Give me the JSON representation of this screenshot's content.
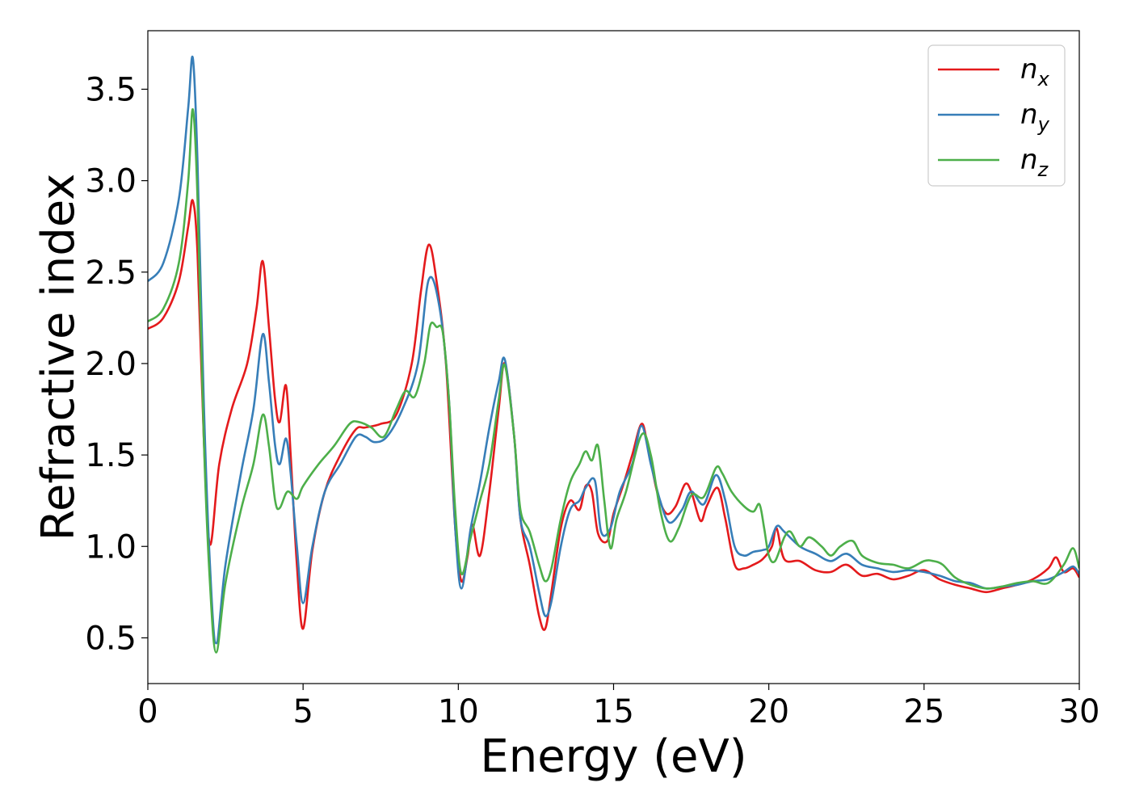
{
  "chart_data": {
    "type": "line",
    "title": "",
    "xlabel": "Energy (eV)",
    "ylabel": "Refractive index",
    "xlim": [
      0,
      30
    ],
    "ylim": [
      0.25,
      3.82
    ],
    "xticks": [
      0,
      5,
      10,
      15,
      20,
      25,
      30
    ],
    "yticks": [
      0.5,
      1.0,
      1.5,
      2.0,
      2.5,
      3.0,
      3.5
    ],
    "grid": false,
    "legend_position": "top-right",
    "series": [
      {
        "name": "n_x",
        "label_base": "n",
        "label_sub": "x",
        "color": "#e41a1c",
        "x": [
          0,
          0.5,
          1.0,
          1.3,
          1.45,
          1.6,
          1.8,
          2.0,
          2.3,
          2.7,
          3.2,
          3.5,
          3.7,
          3.9,
          4.1,
          4.25,
          4.45,
          4.6,
          4.8,
          5.0,
          5.3,
          5.7,
          6.2,
          6.7,
          7.0,
          7.5,
          8.0,
          8.5,
          8.8,
          9.05,
          9.3,
          9.6,
          9.9,
          10.1,
          10.3,
          10.45,
          10.7,
          11.0,
          11.3,
          11.5,
          11.8,
          12.0,
          12.3,
          12.6,
          12.8,
          13.0,
          13.3,
          13.6,
          13.9,
          14.1,
          14.3,
          14.5,
          14.8,
          15.0,
          15.3,
          15.6,
          15.9,
          16.1,
          16.4,
          16.7,
          17.0,
          17.3,
          17.5,
          17.8,
          18.0,
          18.35,
          18.6,
          18.9,
          19.2,
          19.5,
          19.8,
          20.1,
          20.25,
          20.5,
          21.0,
          21.5,
          22.0,
          22.5,
          23.0,
          23.5,
          24.0,
          24.5,
          25.0,
          25.5,
          26.0,
          26.5,
          27.0,
          27.5,
          28.0,
          28.5,
          29.0,
          29.25,
          29.5,
          29.8,
          30.0
        ],
        "y": [
          2.19,
          2.25,
          2.45,
          2.75,
          2.89,
          2.6,
          1.6,
          1.01,
          1.45,
          1.75,
          2.0,
          2.3,
          2.56,
          2.2,
          1.8,
          1.68,
          1.88,
          1.5,
          0.9,
          0.55,
          0.98,
          1.3,
          1.5,
          1.64,
          1.65,
          1.67,
          1.72,
          2.0,
          2.4,
          2.65,
          2.45,
          2.0,
          1.1,
          0.81,
          0.95,
          1.12,
          0.95,
          1.3,
          1.75,
          2.0,
          1.6,
          1.15,
          0.9,
          0.62,
          0.55,
          0.75,
          1.1,
          1.25,
          1.2,
          1.33,
          1.3,
          1.07,
          1.03,
          1.18,
          1.33,
          1.5,
          1.67,
          1.55,
          1.3,
          1.18,
          1.22,
          1.34,
          1.3,
          1.14,
          1.22,
          1.32,
          1.15,
          0.9,
          0.88,
          0.9,
          0.93,
          1.0,
          1.1,
          0.93,
          0.92,
          0.87,
          0.86,
          0.9,
          0.84,
          0.85,
          0.82,
          0.84,
          0.87,
          0.82,
          0.79,
          0.77,
          0.75,
          0.77,
          0.79,
          0.82,
          0.88,
          0.94,
          0.86,
          0.88,
          0.83
        ]
      },
      {
        "name": "n_y",
        "label_base": "n",
        "label_sub": "y",
        "color": "#377eb8",
        "x": [
          0,
          0.5,
          1.0,
          1.3,
          1.45,
          1.6,
          1.8,
          2.0,
          2.2,
          2.5,
          3.0,
          3.4,
          3.7,
          3.9,
          4.1,
          4.25,
          4.45,
          4.6,
          4.8,
          5.0,
          5.3,
          5.7,
          6.2,
          6.7,
          7.0,
          7.3,
          7.7,
          8.2,
          8.7,
          9.05,
          9.4,
          9.7,
          9.9,
          10.1,
          10.4,
          10.7,
          11.0,
          11.3,
          11.5,
          11.8,
          12.0,
          12.3,
          12.6,
          12.8,
          13.0,
          13.3,
          13.6,
          13.9,
          14.1,
          14.4,
          14.6,
          14.9,
          15.2,
          15.6,
          15.9,
          16.2,
          16.5,
          16.8,
          17.2,
          17.5,
          17.9,
          18.3,
          18.6,
          18.9,
          19.2,
          19.5,
          19.8,
          20.0,
          20.25,
          20.5,
          21.0,
          21.5,
          22.0,
          22.5,
          23.0,
          23.5,
          24.0,
          24.5,
          25.0,
          25.5,
          26.0,
          26.5,
          27.0,
          27.5,
          28.0,
          28.5,
          29.0,
          29.5,
          29.8,
          30.0
        ],
        "y": [
          2.45,
          2.55,
          2.9,
          3.4,
          3.67,
          3.1,
          1.8,
          0.9,
          0.47,
          0.9,
          1.4,
          1.75,
          2.16,
          1.9,
          1.55,
          1.45,
          1.59,
          1.4,
          1.0,
          0.69,
          1.0,
          1.3,
          1.45,
          1.6,
          1.6,
          1.57,
          1.6,
          1.75,
          2.0,
          2.46,
          2.3,
          1.8,
          1.1,
          0.77,
          1.1,
          1.35,
          1.65,
          1.9,
          2.02,
          1.6,
          1.15,
          1.0,
          0.75,
          0.62,
          0.7,
          1.0,
          1.2,
          1.25,
          1.32,
          1.36,
          1.08,
          1.1,
          1.3,
          1.45,
          1.66,
          1.45,
          1.25,
          1.13,
          1.2,
          1.3,
          1.23,
          1.39,
          1.25,
          1.0,
          0.95,
          0.97,
          0.98,
          1.0,
          1.11,
          1.08,
          1.0,
          0.96,
          0.92,
          0.96,
          0.9,
          0.88,
          0.86,
          0.87,
          0.86,
          0.84,
          0.81,
          0.8,
          0.77,
          0.78,
          0.79,
          0.81,
          0.82,
          0.86,
          0.89,
          0.85
        ]
      },
      {
        "name": "n_z",
        "label_base": "n",
        "label_sub": "z",
        "color": "#4daf4a",
        "x": [
          0,
          0.5,
          1.0,
          1.3,
          1.45,
          1.6,
          1.8,
          2.0,
          2.2,
          2.5,
          3.0,
          3.4,
          3.7,
          3.9,
          4.1,
          4.25,
          4.5,
          4.8,
          5.0,
          5.5,
          6.0,
          6.5,
          6.8,
          7.2,
          7.6,
          8.0,
          8.3,
          8.6,
          8.9,
          9.1,
          9.3,
          9.5,
          9.7,
          9.9,
          10.1,
          10.4,
          10.7,
          11.0,
          11.3,
          11.5,
          11.8,
          12.0,
          12.3,
          12.6,
          12.8,
          13.0,
          13.3,
          13.6,
          13.9,
          14.1,
          14.3,
          14.5,
          14.7,
          14.9,
          15.1,
          15.4,
          15.9,
          16.2,
          16.5,
          16.8,
          17.1,
          17.5,
          17.9,
          18.3,
          18.5,
          18.8,
          19.2,
          19.5,
          19.7,
          19.85,
          20.0,
          20.2,
          20.5,
          20.7,
          21.0,
          21.3,
          21.7,
          22.0,
          22.3,
          22.7,
          23.0,
          23.5,
          24.0,
          24.5,
          25.0,
          25.3,
          25.6,
          26.0,
          26.5,
          27.0,
          27.5,
          28.0,
          28.5,
          29.0,
          29.5,
          29.8,
          30.0
        ],
        "y": [
          2.23,
          2.3,
          2.55,
          3.0,
          3.39,
          2.9,
          1.6,
          0.8,
          0.42,
          0.8,
          1.2,
          1.45,
          1.72,
          1.55,
          1.25,
          1.21,
          1.3,
          1.26,
          1.33,
          1.45,
          1.55,
          1.67,
          1.68,
          1.65,
          1.6,
          1.75,
          1.85,
          1.82,
          2.0,
          2.21,
          2.2,
          2.17,
          1.8,
          1.2,
          0.85,
          1.05,
          1.25,
          1.45,
          1.8,
          1.99,
          1.6,
          1.2,
          1.08,
          0.9,
          0.81,
          0.88,
          1.15,
          1.35,
          1.45,
          1.52,
          1.47,
          1.55,
          1.25,
          0.99,
          1.15,
          1.3,
          1.61,
          1.5,
          1.2,
          1.03,
          1.1,
          1.28,
          1.27,
          1.43,
          1.4,
          1.3,
          1.22,
          1.19,
          1.23,
          1.1,
          0.95,
          0.92,
          1.05,
          1.08,
          1.0,
          1.05,
          1.0,
          0.95,
          1.0,
          1.03,
          0.95,
          0.91,
          0.9,
          0.88,
          0.92,
          0.92,
          0.9,
          0.83,
          0.79,
          0.77,
          0.78,
          0.8,
          0.81,
          0.8,
          0.9,
          0.99,
          0.88
        ]
      }
    ]
  }
}
